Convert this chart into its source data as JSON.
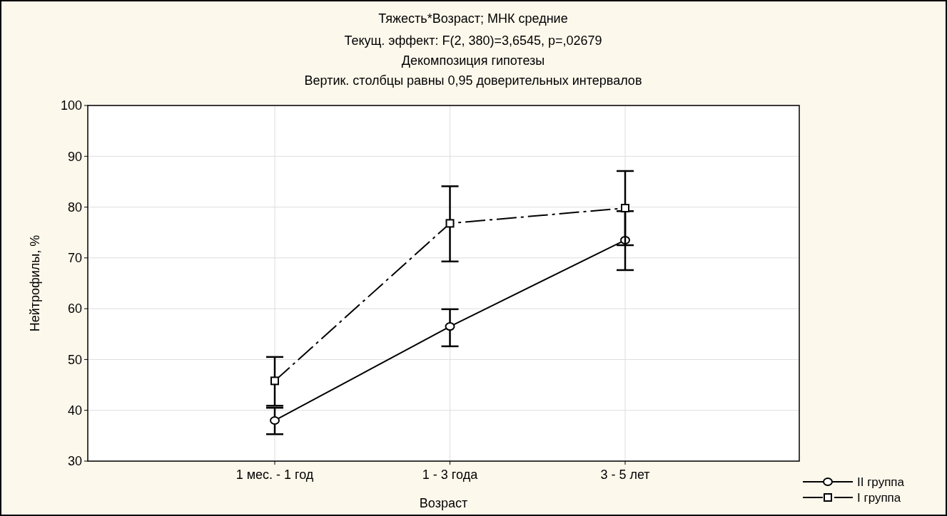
{
  "chart_data": {
    "type": "line",
    "title": "Тяжесть*Возраст; МНК средние",
    "subtitle": "Текущ.  эффект: F(2, 380)=3,6545, p=,02679\nДекомпозиция гипотезы\nВертик. столбцы равны 0,95 доверительных интервалов",
    "xlabel": "Возраст",
    "ylabel": "Нейтрофилы, %",
    "categories": [
      "1 мес. - 1 год",
      "1 - 3 года",
      "3 - 5 лет"
    ],
    "series": [
      {
        "name": "II группа",
        "color": "#000000",
        "values": [
          38.0,
          56.5,
          73.5
        ],
        "errors": [
          [
            35.3,
            40.5
          ],
          [
            52.6,
            59.9
          ],
          [
            67.6,
            79.2
          ]
        ],
        "marker": "circle",
        "line_style": "solid"
      },
      {
        "name": "I группа",
        "color": "#000000",
        "values": [
          45.8,
          76.8,
          79.8
        ],
        "errors": [
          [
            40.9,
            50.5
          ],
          [
            69.3,
            84.1
          ],
          [
            72.5,
            87.1
          ]
        ],
        "marker": "square",
        "line_style": "dashed"
      }
    ],
    "ylim": [
      30,
      100
    ],
    "yticks": [
      30,
      40,
      50,
      60,
      70,
      80,
      90,
      100
    ],
    "grid": true,
    "legend": "bottom right"
  }
}
